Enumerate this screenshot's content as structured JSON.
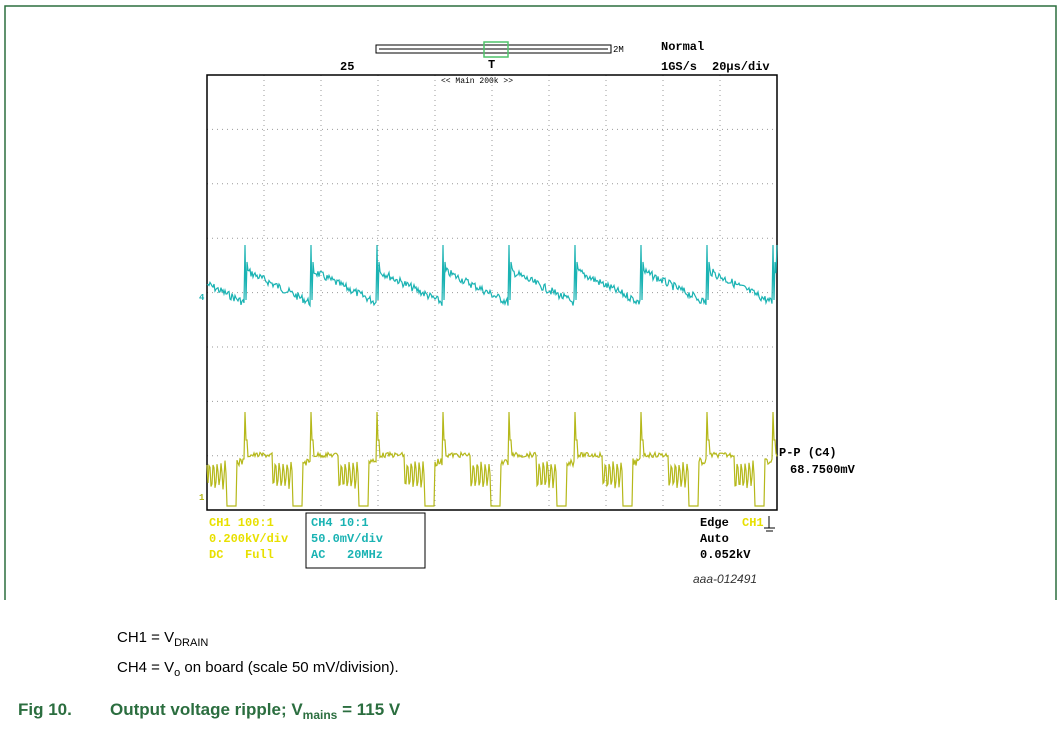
{
  "scope": {
    "status": "Normal",
    "record_number": "25",
    "record_length": "2M",
    "zoom": "<< Main 200k >>",
    "trigger_marker": "T",
    "sample_rate": "1GS/s",
    "timebase": "20µs/div",
    "measurement_name": "P-P (C4)",
    "measurement_value": "68.7500mV",
    "ch1": {
      "probe": "CH1 100:1",
      "scale": "0.200kV/div",
      "coupling": "DC   Full"
    },
    "ch4": {
      "probe": "CH4 10:1",
      "scale": "50.0mV/div",
      "coupling": "AC   20MHz"
    },
    "trigger": {
      "mode": "Edge",
      "source": "CH1",
      "sweep": "Auto",
      "level": "0.052kV"
    },
    "figure_code": "aaa-012491"
  },
  "notes": [
    {
      "prefix": "CH1 = V",
      "sub": "DRAIN",
      "suffix": ""
    },
    {
      "prefix": "CH4 = V",
      "sub": "o",
      "suffix": " on board (scale 50 mV/division)."
    }
  ],
  "figure": {
    "number": "Fig 10.",
    "title_prefix": "Output voltage ripple; V",
    "sub": "mains",
    "title_suffix": " = 115 V"
  }
}
